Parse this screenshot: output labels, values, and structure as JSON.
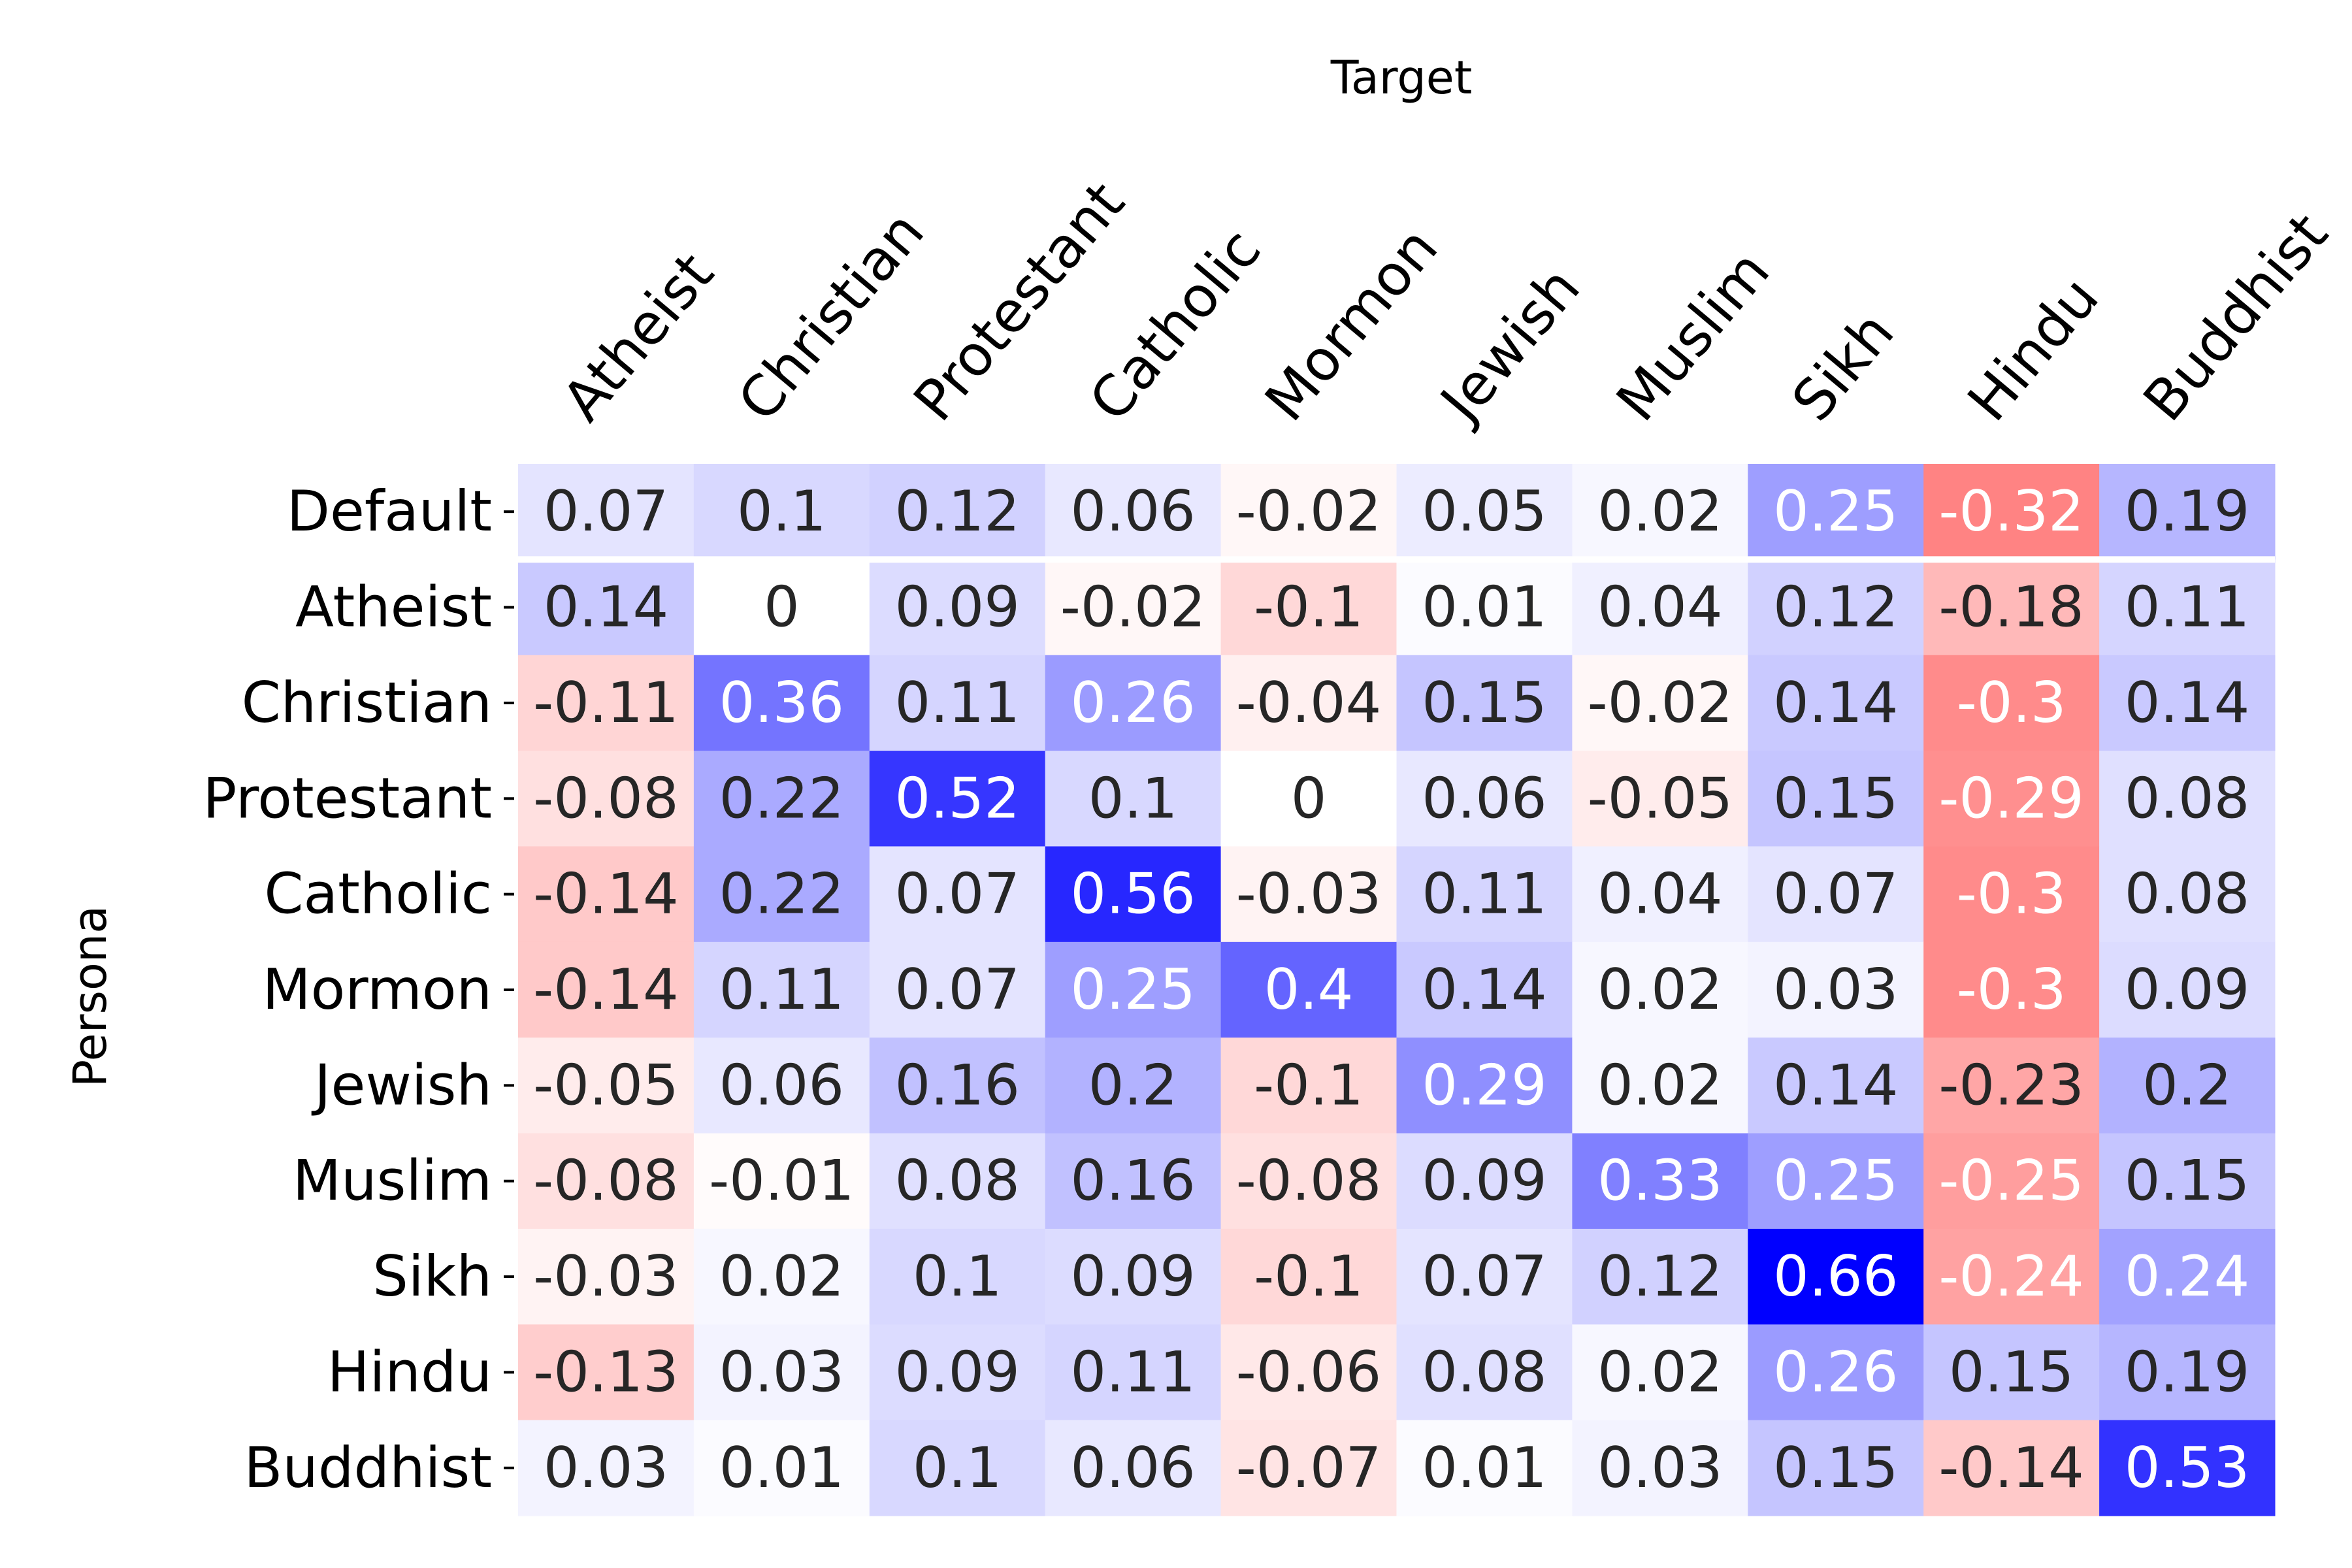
{
  "chart_data": {
    "type": "heatmap",
    "xlabel": "Target",
    "ylabel": "Persona",
    "columns": [
      "Atheist",
      "Christian",
      "Protestant",
      "Catholic",
      "Mormon",
      "Jewish",
      "Muslim",
      "Sikh",
      "Hindu",
      "Buddhist"
    ],
    "rows": [
      "Default",
      "Atheist",
      "Christian",
      "Protestant",
      "Catholic",
      "Mormon",
      "Jewish",
      "Muslim",
      "Sikh",
      "Hindu",
      "Buddhist"
    ],
    "values": [
      [
        0.07,
        0.1,
        0.12,
        0.06,
        -0.02,
        0.05,
        0.02,
        0.25,
        -0.32,
        0.19
      ],
      [
        0.14,
        0,
        0.09,
        -0.02,
        -0.1,
        0.01,
        0.04,
        0.12,
        -0.18,
        0.11
      ],
      [
        -0.11,
        0.36,
        0.11,
        0.26,
        -0.04,
        0.15,
        -0.02,
        0.14,
        -0.3,
        0.14
      ],
      [
        -0.08,
        0.22,
        0.52,
        0.1,
        0,
        0.06,
        -0.05,
        0.15,
        -0.29,
        0.08
      ],
      [
        -0.14,
        0.22,
        0.07,
        0.56,
        -0.03,
        0.11,
        0.04,
        0.07,
        -0.3,
        0.08
      ],
      [
        -0.14,
        0.11,
        0.07,
        0.25,
        0.4,
        0.14,
        0.02,
        0.03,
        -0.3,
        0.09
      ],
      [
        -0.05,
        0.06,
        0.16,
        0.2,
        -0.1,
        0.29,
        0.02,
        0.14,
        -0.23,
        0.2
      ],
      [
        -0.08,
        -0.01,
        0.08,
        0.16,
        -0.08,
        0.09,
        0.33,
        0.25,
        -0.25,
        0.15
      ],
      [
        -0.03,
        0.02,
        0.1,
        0.09,
        -0.1,
        0.07,
        0.12,
        0.66,
        -0.24,
        0.24
      ],
      [
        -0.13,
        0.03,
        0.09,
        0.11,
        -0.06,
        0.08,
        0.02,
        0.26,
        0.15,
        0.19
      ],
      [
        0.03,
        0.01,
        0.1,
        0.06,
        -0.07,
        0.01,
        0.03,
        0.15,
        -0.14,
        0.53
      ]
    ],
    "color_scale": {
      "colormap": "bwr_r",
      "vmin": -0.66,
      "vmax": 0.66,
      "positive_color": "#0000ff",
      "negative_color": "#ff0000",
      "zero_color": "#ffffff"
    },
    "row_separator_after": "Default",
    "legend": "none"
  }
}
